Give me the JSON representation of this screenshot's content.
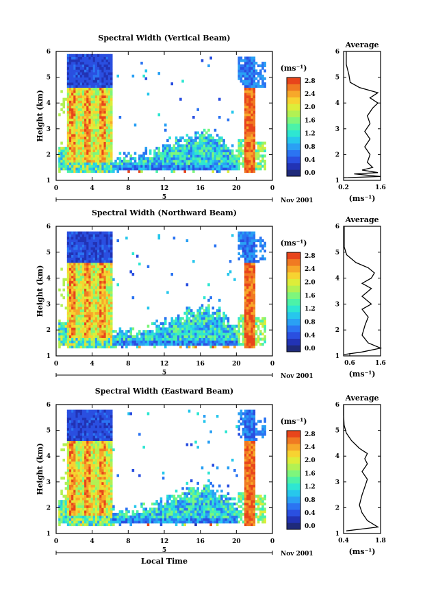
{
  "colors": {
    "colormap": [
      "#1f2a7a",
      "#2233b5",
      "#2a4fe0",
      "#2b74f2",
      "#2aa0f4",
      "#27c7ec",
      "#2ee6d2",
      "#4cf2a8",
      "#7ef67c",
      "#b2f153",
      "#dded3a",
      "#f7d331",
      "#f7a82a",
      "#f07a22",
      "#e8451b"
    ],
    "trace": "#000000"
  },
  "date_label": "Nov 2001",
  "day_label": "5",
  "xlabel_bottom": "Local Time",
  "chart_data": [
    {
      "type": "heatmap",
      "title": "Spectral Width (Vertical Beam)",
      "xlabel": "",
      "ylabel": "Height (km)",
      "x_ticks": [
        "0",
        "4",
        "8",
        "12",
        "16",
        "20",
        "0"
      ],
      "y_ticks": [
        "1",
        "2",
        "3",
        "4",
        "5",
        "6"
      ],
      "xlim": [
        0,
        24
      ],
      "ylim": [
        1,
        6
      ],
      "colorbar": {
        "unit": "(ms⁻¹)",
        "ticks": [
          "0.0",
          "0.4",
          "0.8",
          "1.2",
          "1.6",
          "2.0",
          "2.4",
          "2.8"
        ],
        "range": [
          0,
          3.0
        ]
      },
      "average": {
        "title": "Average",
        "xlabel": "(ms⁻¹)",
        "x_ticks": [
          "0.2",
          "1.6"
        ],
        "xlim": [
          0.2,
          1.6
        ],
        "y_ticks": [
          "1",
          "2",
          "3",
          "4",
          "5",
          "6"
        ],
        "ylim": [
          1,
          6
        ],
        "profile": [
          [
            0.2,
            1.1
          ],
          [
            1.6,
            1.15
          ],
          [
            0.6,
            1.25
          ],
          [
            1.5,
            1.3
          ],
          [
            0.9,
            1.4
          ],
          [
            1.3,
            1.5
          ],
          [
            1.1,
            1.7
          ],
          [
            1.2,
            2.0
          ],
          [
            1.0,
            2.3
          ],
          [
            1.2,
            2.6
          ],
          [
            1.0,
            2.9
          ],
          [
            1.2,
            3.2
          ],
          [
            1.1,
            3.5
          ],
          [
            1.3,
            3.8
          ],
          [
            1.5,
            4.0
          ],
          [
            1.2,
            4.2
          ],
          [
            1.5,
            4.4
          ],
          [
            0.8,
            4.6
          ],
          [
            0.45,
            4.8
          ],
          [
            0.4,
            5.1
          ],
          [
            0.3,
            5.5
          ],
          [
            0.3,
            5.8
          ],
          [
            0.3,
            6.0
          ]
        ]
      }
    },
    {
      "type": "heatmap",
      "title": "Spectral Width (Northward Beam)",
      "xlabel": "",
      "ylabel": "Height (km)",
      "x_ticks": [
        "0",
        "4",
        "8",
        "12",
        "16",
        "20",
        "0"
      ],
      "y_ticks": [
        "1",
        "2",
        "3",
        "4",
        "5",
        "6"
      ],
      "xlim": [
        0,
        24
      ],
      "ylim": [
        1,
        6
      ],
      "colorbar": {
        "unit": "(ms⁻¹)",
        "ticks": [
          "0.0",
          "0.4",
          "0.8",
          "1.2",
          "1.6",
          "2.0",
          "2.4",
          "2.8"
        ],
        "range": [
          0,
          3.0
        ]
      },
      "average": {
        "title": "Average",
        "xlabel": "(ms⁻¹)",
        "x_ticks": [
          "0.6",
          "1.6"
        ],
        "xlim": [
          0.4,
          1.6
        ],
        "y_ticks": [
          "1",
          "2",
          "3",
          "4",
          "5",
          "6"
        ],
        "ylim": [
          1,
          6
        ],
        "profile": [
          [
            0.4,
            1.05
          ],
          [
            1.0,
            1.15
          ],
          [
            1.6,
            1.3
          ],
          [
            1.2,
            1.5
          ],
          [
            1.0,
            1.8
          ],
          [
            1.1,
            2.2
          ],
          [
            1.2,
            2.5
          ],
          [
            1.0,
            2.8
          ],
          [
            1.3,
            3.0
          ],
          [
            1.0,
            3.3
          ],
          [
            1.3,
            3.6
          ],
          [
            1.0,
            3.8
          ],
          [
            1.3,
            4.0
          ],
          [
            1.4,
            4.2
          ],
          [
            1.2,
            4.4
          ],
          [
            0.8,
            4.6
          ],
          [
            0.5,
            4.9
          ],
          [
            0.42,
            5.2
          ],
          [
            0.42,
            6.0
          ]
        ]
      }
    },
    {
      "type": "heatmap",
      "title": "Spectral Width (Eastward Beam)",
      "xlabel": "Local Time",
      "ylabel": "Height (km)",
      "x_ticks": [
        "0",
        "4",
        "8",
        "12",
        "16",
        "20",
        "0"
      ],
      "y_ticks": [
        "1",
        "2",
        "3",
        "4",
        "5",
        "6"
      ],
      "xlim": [
        0,
        24
      ],
      "ylim": [
        1,
        6
      ],
      "colorbar": {
        "unit": "(ms⁻¹)",
        "ticks": [
          "0.0",
          "0.4",
          "0.8",
          "1.2",
          "1.6",
          "2.0",
          "2.4",
          "2.8"
        ],
        "range": [
          0,
          3.0
        ]
      },
      "average": {
        "title": "Average",
        "xlabel": "(ms⁻¹)",
        "x_ticks": [
          "0.4",
          "1.8"
        ],
        "xlim": [
          0.4,
          1.8
        ],
        "y_ticks": [
          "1",
          "2",
          "3",
          "4",
          "5",
          "6"
        ],
        "ylim": [
          1,
          6
        ],
        "profile": [
          [
            0.5,
            1.1
          ],
          [
            1.7,
            1.25
          ],
          [
            1.3,
            1.5
          ],
          [
            1.1,
            1.8
          ],
          [
            1.0,
            2.1
          ],
          [
            1.1,
            2.5
          ],
          [
            1.2,
            2.8
          ],
          [
            1.3,
            3.1
          ],
          [
            1.1,
            3.4
          ],
          [
            1.3,
            3.7
          ],
          [
            1.2,
            3.9
          ],
          [
            1.3,
            4.1
          ],
          [
            1.0,
            4.3
          ],
          [
            0.7,
            4.6
          ],
          [
            0.5,
            4.9
          ],
          [
            0.42,
            5.2
          ],
          [
            0.4,
            5.6
          ],
          [
            0.4,
            6.0
          ]
        ]
      }
    }
  ]
}
